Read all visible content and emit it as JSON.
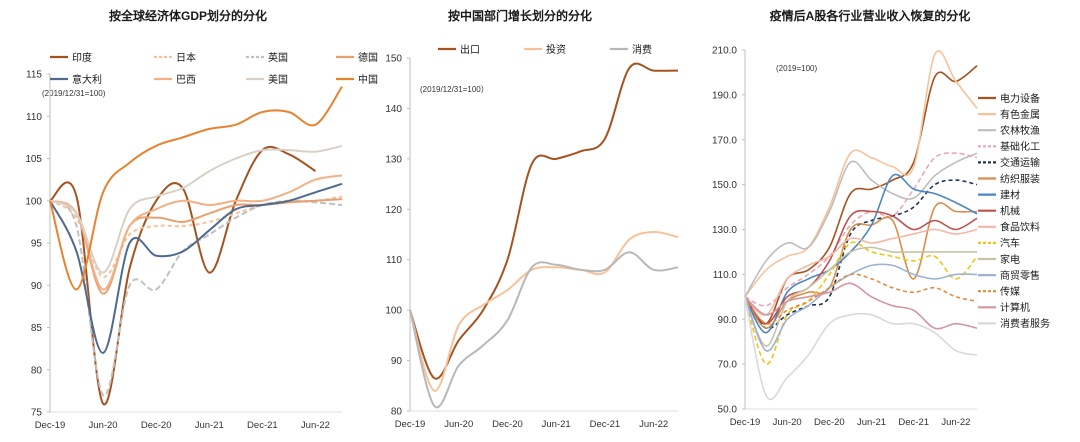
{
  "chart_data": [
    {
      "type": "line",
      "title": "按全球经济体GDP划分的分化",
      "note": "(2019/12/31=100)",
      "x_ticks": [
        "Dec-19",
        "Jun-20",
        "Dec-20",
        "Jun-21",
        "Dec-21",
        "Jun-22"
      ],
      "ylim": [
        75,
        115
      ],
      "y_ticks": [
        75,
        80,
        85,
        90,
        95,
        100,
        105,
        110,
        115
      ],
      "grid": false,
      "legend": "top",
      "series": [
        {
          "name": "印度",
          "color": "#a5521f",
          "dash": "",
          "x": [
            0,
            0.5,
            1,
            1.5,
            2,
            2.5,
            3,
            3.5,
            4,
            4.5,
            5,
            5.5
          ],
          "values": [
            100,
            100.5,
            76,
            92,
            100,
            101.5,
            91.5,
            100,
            106,
            105.5,
            103.5,
            null
          ]
        },
        {
          "name": "日本",
          "color": "#f7c29a",
          "dash": "4,3",
          "x": [
            0,
            0.5,
            1,
            1.5,
            2,
            2.5,
            3,
            3.5,
            4,
            4.5,
            5,
            5.5
          ],
          "values": [
            100,
            98,
            91,
            96,
            97,
            97,
            97.5,
            98.5,
            99.5,
            100,
            100,
            100.5
          ]
        },
        {
          "name": "英国",
          "color": "#c0c0c0",
          "dash": "6,3",
          "x": [
            0,
            0.5,
            1,
            1.5,
            2,
            2.5,
            3,
            3.5,
            4,
            4.5,
            5,
            5.5
          ],
          "values": [
            100,
            97,
            77,
            90,
            89.5,
            94,
            96,
            98,
            99.5,
            100,
            99.8,
            99.5
          ]
        },
        {
          "name": "德国",
          "color": "#e8a070",
          "dash": "",
          "x": [
            0,
            0.5,
            1,
            1.5,
            2,
            2.5,
            3,
            3.5,
            4,
            4.5,
            5,
            5.5
          ],
          "values": [
            100,
            98.5,
            89,
            97,
            98,
            97.5,
            98.5,
            99.5,
            99.5,
            99.8,
            100,
            100.2
          ]
        },
        {
          "name": "意大利",
          "color": "#4f6a8f",
          "dash": "",
          "x": [
            0,
            0.5,
            1,
            1.5,
            2,
            2.5,
            3,
            3.5,
            4,
            4.5,
            5,
            5.5
          ],
          "values": [
            100,
            94,
            82,
            95,
            93.5,
            94,
            96.5,
            99,
            99.5,
            100,
            101,
            102
          ]
        },
        {
          "name": "巴西",
          "color": "#f2b084",
          "dash": "",
          "x": [
            0,
            0.5,
            1,
            1.5,
            2,
            2.5,
            3,
            3.5,
            4,
            4.5,
            5,
            5.5
          ],
          "values": [
            100,
            98.5,
            89.5,
            97,
            99,
            100,
            99.5,
            100,
            100,
            101,
            102.5,
            103
          ]
        },
        {
          "name": "美国",
          "color": "#d9d0c6",
          "dash": "",
          "x": [
            0,
            0.5,
            1,
            1.5,
            2,
            2.5,
            3,
            3.5,
            4,
            4.5,
            5,
            5.5
          ],
          "values": [
            100,
            98.5,
            91.5,
            99,
            100.5,
            101.5,
            103.5,
            105,
            106,
            106,
            105.8,
            106.5
          ]
        },
        {
          "name": "中国",
          "color": "#e8822e",
          "dash": "",
          "x": [
            0,
            0.5,
            1,
            1.5,
            2,
            2.5,
            3,
            3.5,
            4,
            4.5,
            5,
            5.5
          ],
          "values": [
            100,
            89.5,
            101,
            104.5,
            106.5,
            107.5,
            108.5,
            109,
            110.5,
            110.5,
            109,
            113.5
          ]
        }
      ]
    },
    {
      "type": "line",
      "title": "按中国部门增长划分的分化",
      "note": "(2019/12/31=100）",
      "x_ticks": [
        "Dec-19",
        "Jun-20",
        "Dec-20",
        "Jun-21",
        "Dec-21",
        "Jun-22"
      ],
      "ylim": [
        80,
        150
      ],
      "y_ticks": [
        80,
        90,
        100,
        110,
        120,
        130,
        140,
        150
      ],
      "grid": false,
      "legend": "top",
      "series": [
        {
          "name": "出口",
          "color": "#a5521f",
          "dash": "",
          "x": [
            0,
            0.5,
            1,
            1.5,
            2,
            2.5,
            3,
            3.5,
            4,
            4.5,
            5,
            5.5
          ],
          "values": [
            100,
            86.5,
            94,
            100,
            110,
            129,
            130,
            131.5,
            134,
            148,
            147.5,
            147.5
          ]
        },
        {
          "name": "投资",
          "color": "#f7c29a",
          "dash": "",
          "x": [
            0,
            0.5,
            1,
            1.5,
            2,
            2.5,
            3,
            3.5,
            4,
            4.5,
            5,
            5.5
          ],
          "values": [
            100,
            84,
            97,
            101,
            104,
            108,
            108.5,
            108,
            107.5,
            114,
            115.5,
            114.5
          ]
        },
        {
          "name": "消费",
          "color": "#b8b8b8",
          "dash": "",
          "x": [
            0,
            0.5,
            1,
            1.5,
            2,
            2.5,
            3,
            3.5,
            4,
            4.5,
            5,
            5.5
          ],
          "values": [
            100,
            81,
            89,
            93,
            98,
            108.5,
            109,
            108,
            108,
            111.5,
            108,
            108.5
          ]
        }
      ]
    },
    {
      "type": "line",
      "title": "疫情后A股各行业营业收入恢复的分化",
      "note": "(2019=100)",
      "x_ticks": [
        "Dec-19",
        "Jun-20",
        "Dec-20",
        "Jun-21",
        "Dec-21",
        "Jun-22"
      ],
      "ylim": [
        50,
        210
      ],
      "y_ticks": [
        50.0,
        70.0,
        90.0,
        110.0,
        130.0,
        150.0,
        170.0,
        190.0,
        210.0
      ],
      "grid": false,
      "legend": "right",
      "series": [
        {
          "name": "电力设备",
          "color": "#a5521f",
          "dash": "",
          "x": [
            0,
            0.5,
            1,
            1.5,
            2,
            2.5,
            3,
            3.5,
            4,
            4.5,
            5,
            5.5
          ],
          "values": [
            100,
            88,
            108,
            112,
            122,
            146,
            148,
            152,
            160,
            198,
            196,
            203
          ]
        },
        {
          "name": "有色金属",
          "color": "#f7c29a",
          "dash": "",
          "x": [
            0,
            0.5,
            1,
            1.5,
            2,
            2.5,
            3,
            3.5,
            4,
            4.5,
            5,
            5.5
          ],
          "values": [
            100,
            112,
            118,
            122,
            140,
            164,
            162,
            158,
            158,
            208,
            196,
            184
          ]
        },
        {
          "name": "农林牧渔",
          "color": "#bdbdbd",
          "dash": "",
          "x": [
            0,
            0.5,
            1,
            1.5,
            2,
            2.5,
            3,
            3.5,
            4,
            4.5,
            5,
            5.5
          ],
          "values": [
            100,
            116,
            124,
            122,
            138,
            160,
            152,
            146,
            144,
            154,
            160,
            164
          ]
        },
        {
          "name": "基础化工",
          "color": "#e9a7b1",
          "dash": "5,3",
          "x": [
            0,
            0.5,
            1,
            1.5,
            2,
            2.5,
            3,
            3.5,
            4,
            4.5,
            5,
            5.5
          ],
          "values": [
            100,
            96,
            104,
            110,
            118,
            132,
            138,
            136,
            148,
            162,
            164,
            162
          ]
        },
        {
          "name": "交通运输",
          "color": "#1f3457",
          "dash": "4,3",
          "x": [
            0,
            0.5,
            1,
            1.5,
            2,
            2.5,
            3,
            3.5,
            4,
            4.5,
            5,
            5.5
          ],
          "values": [
            100,
            86,
            92,
            96,
            100,
            128,
            134,
            136,
            140,
            150,
            152,
            150
          ]
        },
        {
          "name": "纺织服装",
          "color": "#d98c4a",
          "dash": "",
          "x": [
            0,
            0.5,
            1,
            1.5,
            2,
            2.5,
            3,
            3.5,
            4,
            4.5,
            5,
            5.5
          ],
          "values": [
            100,
            86,
            98,
            102,
            104,
            130,
            132,
            134,
            108,
            140,
            138,
            138
          ]
        },
        {
          "name": "建材",
          "color": "#4a86c6",
          "dash": "",
          "x": [
            0,
            0.5,
            1,
            1.5,
            2,
            2.5,
            3,
            3.5,
            4,
            4.5,
            5,
            5.5
          ],
          "values": [
            100,
            84,
            102,
            108,
            112,
            120,
            132,
            154,
            148,
            146,
            142,
            137
          ]
        },
        {
          "name": "机械",
          "color": "#c0504d",
          "dash": "",
          "x": [
            0,
            0.5,
            1,
            1.5,
            2,
            2.5,
            3,
            3.5,
            4,
            4.5,
            5,
            5.5
          ],
          "values": [
            100,
            88,
            100,
            104,
            116,
            136,
            138,
            136,
            130,
            134,
            130,
            135
          ]
        },
        {
          "name": "食品饮料",
          "color": "#f4b6a6",
          "dash": "",
          "x": [
            0,
            0.5,
            1,
            1.5,
            2,
            2.5,
            3,
            3.5,
            4,
            4.5,
            5,
            5.5
          ],
          "values": [
            100,
            92,
            108,
            114,
            118,
            126,
            124,
            126,
            128,
            130,
            128,
            130
          ]
        },
        {
          "name": "汽车",
          "color": "#f0c419",
          "dash": "5,3",
          "x": [
            0,
            0.5,
            1,
            1.5,
            2,
            2.5,
            3,
            3.5,
            4,
            4.5,
            5,
            5.5
          ],
          "values": [
            100,
            70,
            92,
            98,
            110,
            124,
            120,
            118,
            116,
            118,
            108,
            118
          ]
        },
        {
          "name": "家电",
          "color": "#c6c3a5",
          "dash": "",
          "x": [
            0,
            0.5,
            1,
            1.5,
            2,
            2.5,
            3,
            3.5,
            4,
            4.5,
            5,
            5.5
          ],
          "values": [
            100,
            78,
            98,
            104,
            112,
            120,
            122,
            120,
            120,
            120,
            120,
            120
          ]
        },
        {
          "name": "商贸零售",
          "color": "#9db3d6",
          "dash": "",
          "x": [
            0,
            0.5,
            1,
            1.5,
            2,
            2.5,
            3,
            3.5,
            4,
            4.5,
            5,
            5.5
          ],
          "values": [
            100,
            76,
            90,
            96,
            104,
            110,
            114,
            114,
            110,
            108,
            110,
            110
          ]
        },
        {
          "name": "传媒",
          "color": "#e38d3c",
          "dash": "4,3",
          "x": [
            0,
            0.5,
            1,
            1.5,
            2,
            2.5,
            3,
            3.5,
            4,
            4.5,
            5,
            5.5
          ],
          "values": [
            100,
            88,
            94,
            98,
            104,
            110,
            108,
            104,
            102,
            104,
            100,
            98
          ]
        },
        {
          "name": "计算机",
          "color": "#d4959f",
          "dash": "",
          "x": [
            0,
            0.5,
            1,
            1.5,
            2,
            2.5,
            3,
            3.5,
            4,
            4.5,
            5,
            5.5
          ],
          "values": [
            100,
            92,
            98,
            100,
            102,
            106,
            100,
            96,
            94,
            86,
            88,
            86
          ]
        },
        {
          "name": "消费者服务",
          "color": "#d9d9d9",
          "dash": "",
          "x": [
            0,
            0.5,
            1,
            1.5,
            2,
            2.5,
            3,
            3.5,
            4,
            4.5,
            5,
            5.5
          ],
          "values": [
            100,
            56,
            64,
            74,
            88,
            92,
            92,
            88,
            88,
            84,
            76,
            74
          ]
        }
      ]
    }
  ]
}
